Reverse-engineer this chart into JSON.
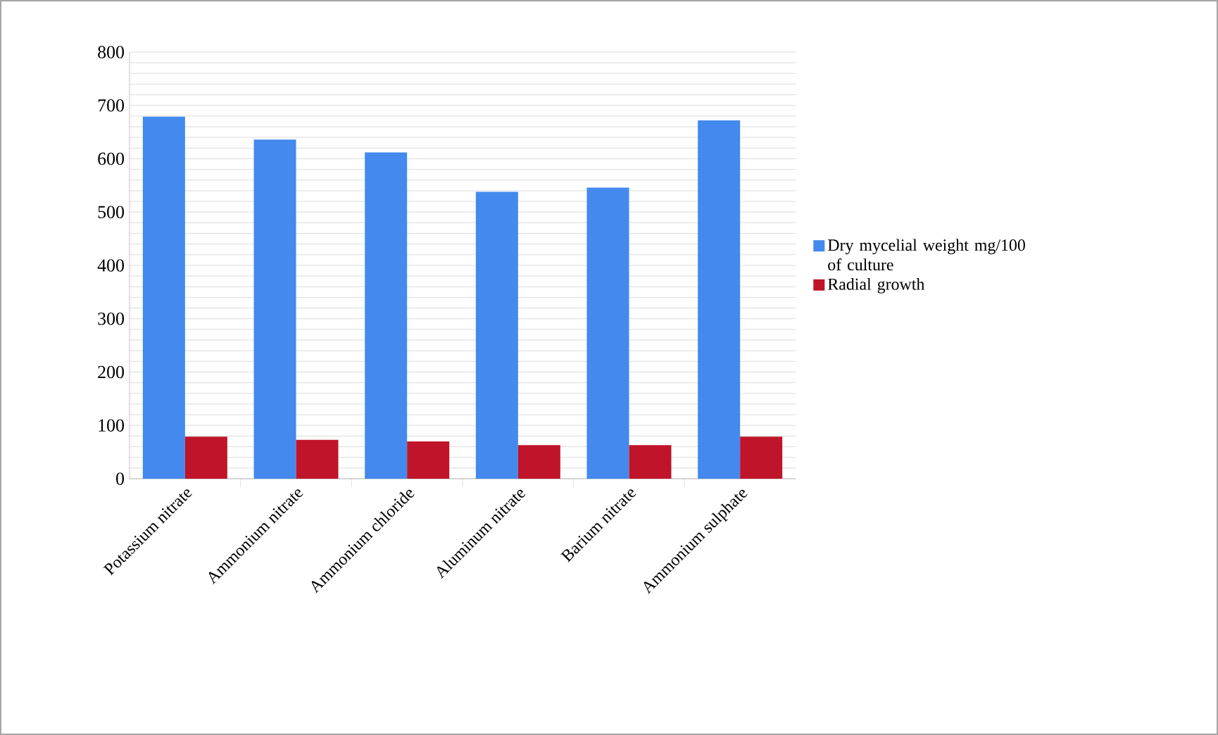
{
  "chart_data": {
    "type": "bar",
    "categories": [
      "Potassium nitrate",
      "Ammonium nitrate",
      "Ammonium chloride",
      "Aluminum nitrate",
      "Barium nitrate",
      "Ammonium sulphate"
    ],
    "series": [
      {
        "name": "Dry mycelial weight mg/100 of culture",
        "color": "#4389ee",
        "values": [
          679,
          636,
          612,
          538,
          546,
          672
        ]
      },
      {
        "name": "Radial growth",
        "color": "#c0142a",
        "values": [
          79,
          73,
          70,
          63,
          63,
          79
        ]
      }
    ],
    "ylim": [
      0,
      800
    ],
    "yticks": [
      0,
      100,
      200,
      300,
      400,
      500,
      600,
      700,
      800
    ],
    "grid": "y",
    "legend": "right"
  }
}
